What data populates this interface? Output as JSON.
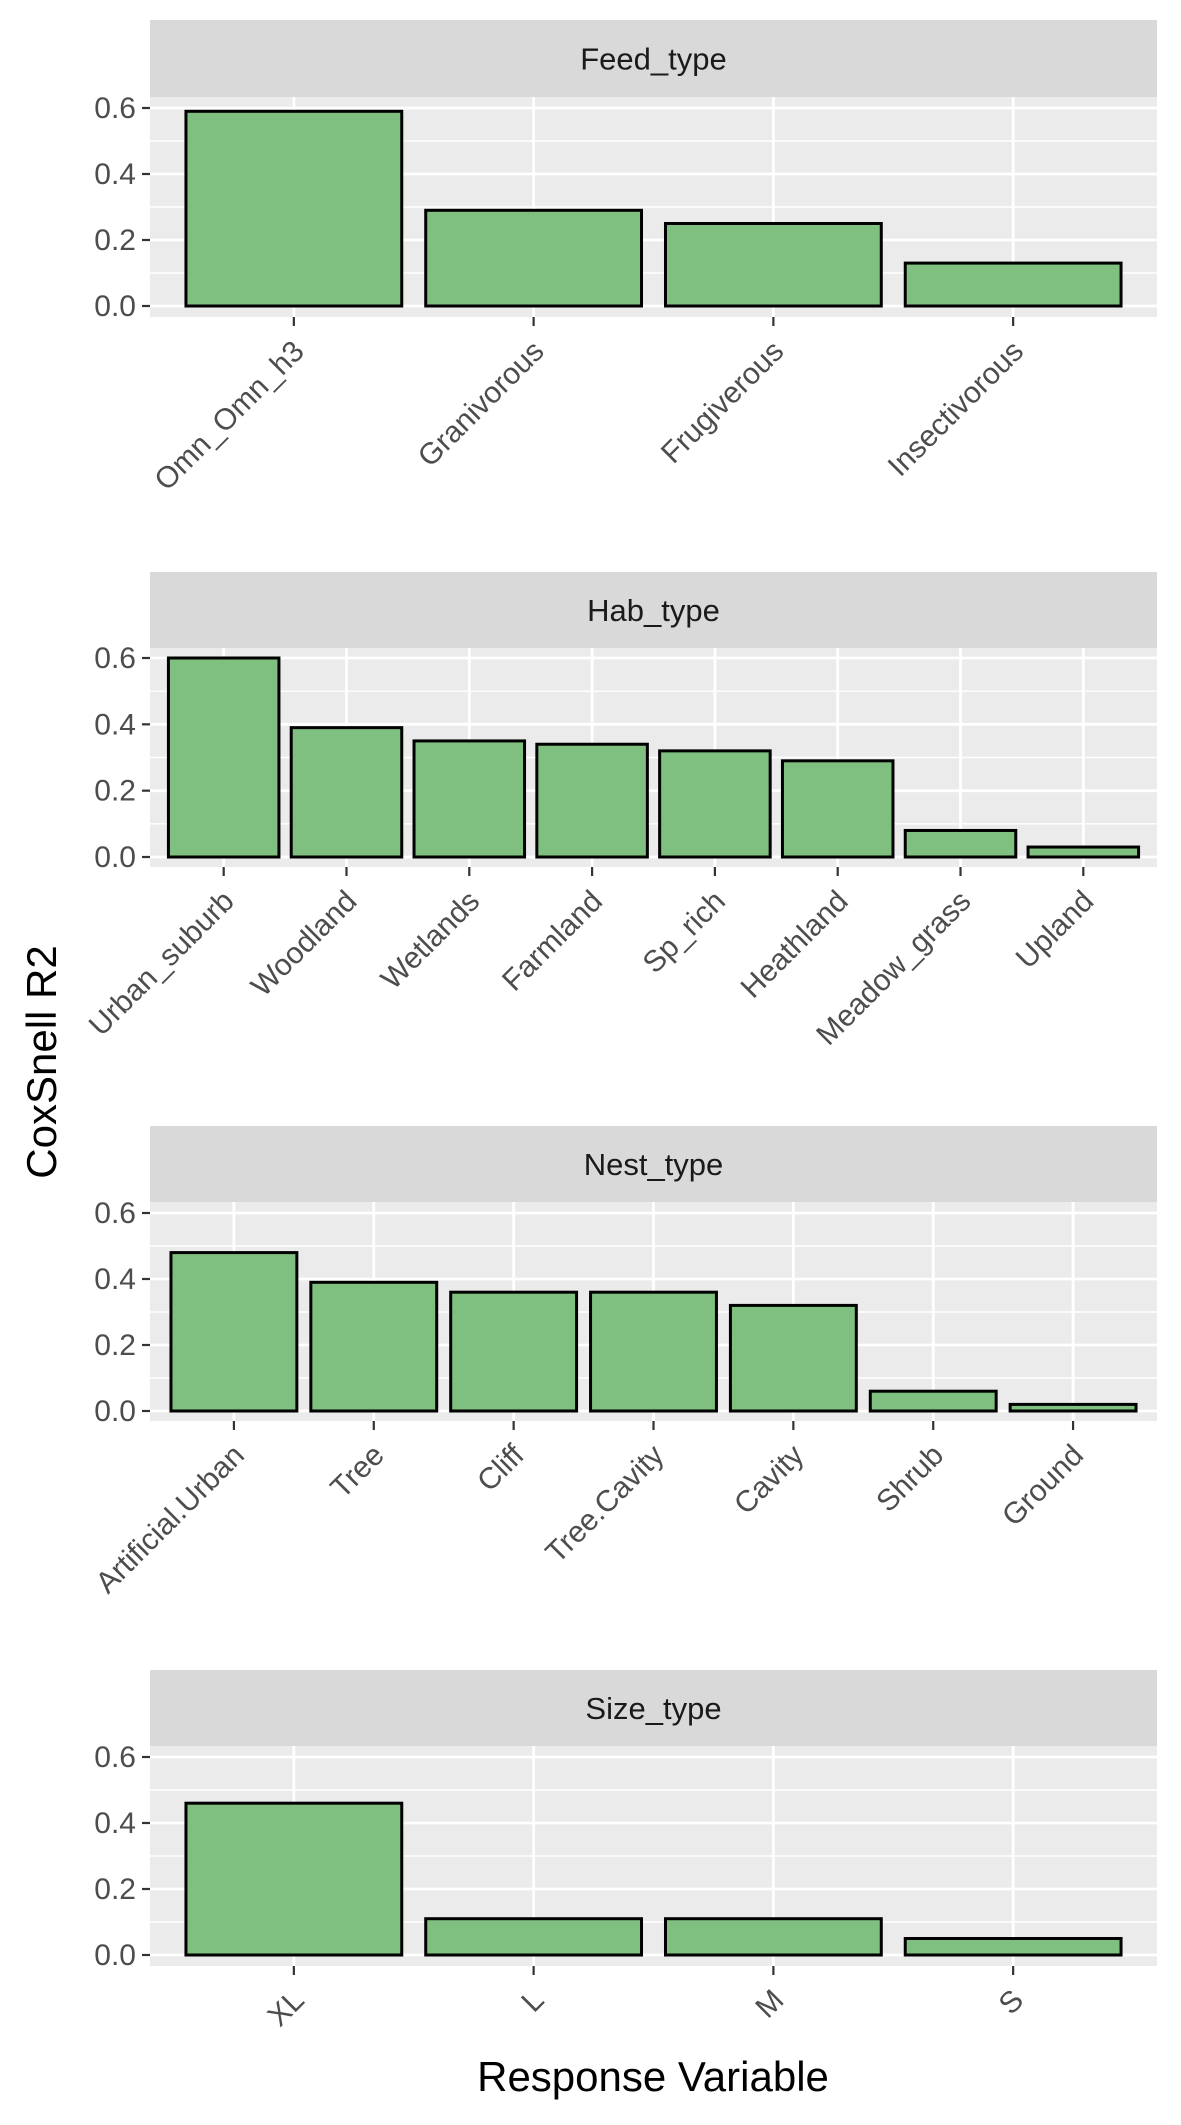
{
  "chart_data": {
    "type": "bar",
    "facet_by": "Response Variable group",
    "xlabel": "Response Variable",
    "ylabel": "CoxSnell R2",
    "ylim": [
      0,
      0.6
    ],
    "yticks": [
      0.0,
      0.2,
      0.4,
      0.6
    ],
    "ytick_labels": [
      "0.0",
      "0.2",
      "0.4",
      "0.6"
    ],
    "grid": true,
    "bar_color": "#7fc080",
    "bar_border": "#000000",
    "panel_background": "#ebebeb",
    "strip_background": "#d9d9d9",
    "panels": [
      {
        "title": "Feed_type",
        "categories": [
          "Omn_Omn_h3",
          "Granivorous",
          "Frugiverous",
          "Insectivorous"
        ],
        "values": [
          0.59,
          0.29,
          0.25,
          0.13
        ]
      },
      {
        "title": "Hab_type",
        "categories": [
          "Urban_suburb",
          "Woodland",
          "Wetlands",
          "Farmland",
          "Sp_rich",
          "Heathland",
          "Meadow_grass",
          "Upland"
        ],
        "values": [
          0.6,
          0.39,
          0.35,
          0.34,
          0.32,
          0.29,
          0.08,
          0.03
        ]
      },
      {
        "title": "Nest_type",
        "categories": [
          "Artificial.Urban",
          "Tree",
          "Cliff",
          "Tree.Cavity",
          "Cavity",
          "Shrub",
          "Ground"
        ],
        "values": [
          0.48,
          0.39,
          0.36,
          0.36,
          0.32,
          0.06,
          0.02
        ]
      },
      {
        "title": "Size_type",
        "categories": [
          "XL",
          "L",
          "M",
          "S"
        ],
        "values": [
          0.46,
          0.11,
          0.11,
          0.05
        ]
      }
    ]
  }
}
